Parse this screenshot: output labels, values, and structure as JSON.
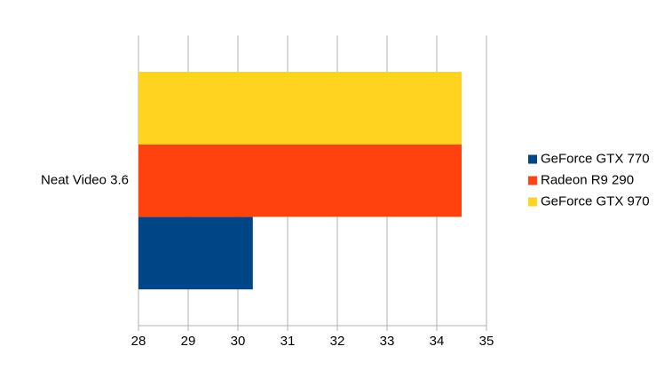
{
  "chart_data": {
    "type": "hbar",
    "categories": [
      "Neat Video 3.6"
    ],
    "series": [
      {
        "name": "GeForce GTX 770",
        "color": "#004586",
        "values": [
          30.3
        ]
      },
      {
        "name": "Radeon R9 290",
        "color": "#ff420e",
        "values": [
          34.5
        ]
      },
      {
        "name": "GeForce GTX 970",
        "color": "#ffd320",
        "values": [
          34.5
        ]
      }
    ],
    "xlim": [
      28,
      35
    ],
    "xticks": [
      28,
      29,
      30,
      31,
      32,
      33,
      34,
      35
    ],
    "grid": true,
    "legend": "right"
  }
}
